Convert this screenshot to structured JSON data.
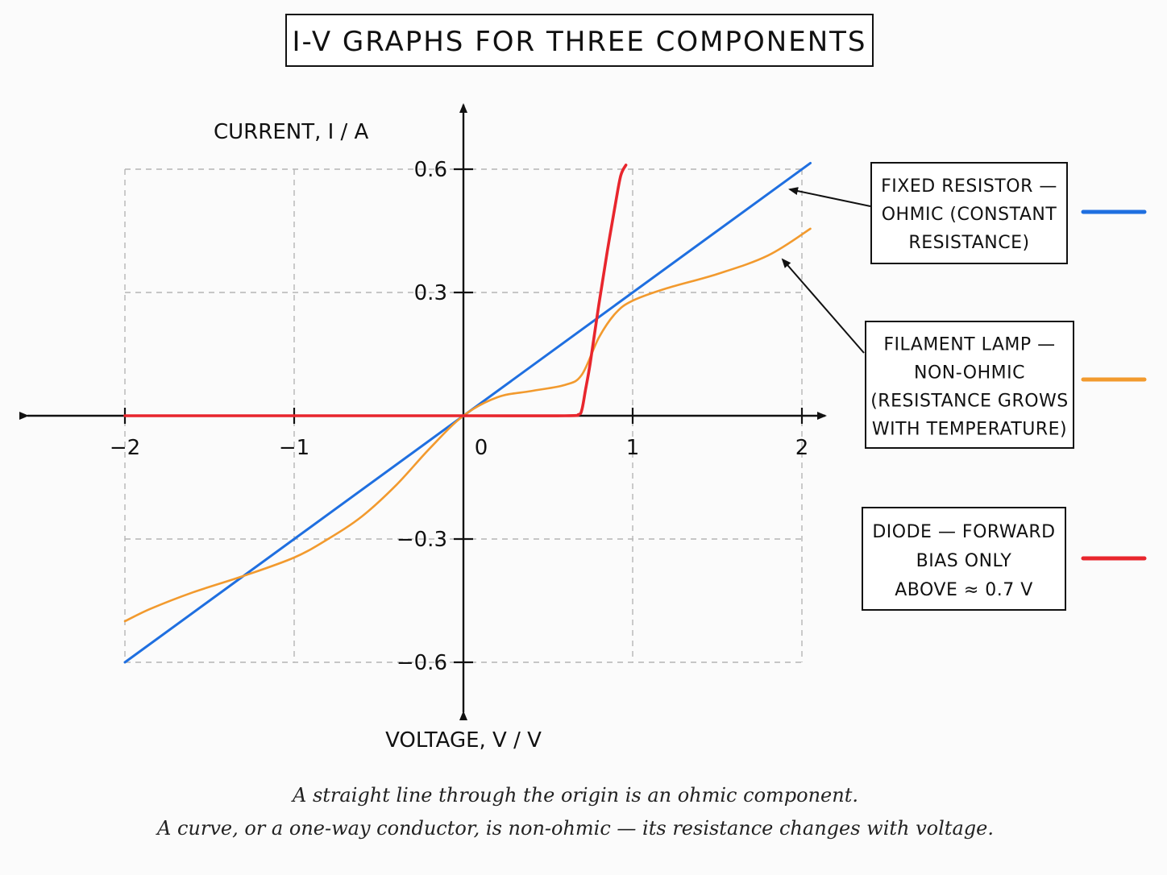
{
  "chart_data": {
    "type": "line",
    "title": "I-V GRAPHS FOR THREE COMPONENTS",
    "ylabel": "CURRENT, I / A",
    "xlabel": "VOLTAGE, V / V",
    "xlim": [
      -2,
      2
    ],
    "ylim": [
      -0.6,
      0.6
    ],
    "x_ticks": [
      -2,
      -1,
      0,
      1,
      2
    ],
    "x_tick_labels": [
      "−2",
      "−1",
      "0",
      "1",
      "2"
    ],
    "y_ticks": [
      -0.6,
      -0.3,
      0.3,
      0.6
    ],
    "y_tick_labels": [
      "−0.6",
      "−0.3",
      "0.3",
      "0.6"
    ],
    "grid": true,
    "legend_position": "right",
    "series": [
      {
        "name": "FIXED RESISTOR — OHMIC (CONSTANT RESISTANCE)",
        "legend_lines": [
          "FIXED RESISTOR —",
          "OHMIC (CONSTANT",
          "RESISTANCE)"
        ],
        "color": "#1f6fe0",
        "x": [
          -2,
          2.05
        ],
        "y": [
          -0.6,
          0.615
        ]
      },
      {
        "name": "FILAMENT LAMP — NON-OHMIC (RESISTANCE GROWS WITH TEMPERATURE)",
        "legend_lines": [
          "FILAMENT LAMP —",
          "NON-OHMIC",
          "(RESISTANCE GROWS",
          "WITH TEMPERATURE)"
        ],
        "color": "#f29a2e",
        "x": [
          -2,
          -1.85,
          -1.6,
          -1.3,
          -1.0,
          -0.8,
          -0.6,
          -0.4,
          -0.2,
          0,
          0.2,
          0.4,
          0.6,
          0.7,
          0.8,
          0.9,
          1.0,
          1.2,
          1.5,
          1.8,
          2.05
        ],
        "y": [
          -0.5,
          -0.47,
          -0.43,
          -0.39,
          -0.345,
          -0.3,
          -0.245,
          -0.17,
          -0.08,
          0,
          0.045,
          0.06,
          0.075,
          0.1,
          0.19,
          0.25,
          0.28,
          0.31,
          0.345,
          0.39,
          0.455
        ]
      },
      {
        "name": "DIODE — FORWARD BIAS ONLY ABOVE ≈ 0.7 V",
        "legend_lines": [
          "DIODE — FORWARD",
          "BIAS ONLY",
          "ABOVE ≈ 0.7 V"
        ],
        "color": "#e8262d",
        "x": [
          -2,
          0,
          0.6,
          0.68,
          0.7,
          0.72,
          0.75,
          0.8,
          0.85,
          0.9,
          0.93,
          0.96
        ],
        "y": [
          0,
          0,
          0,
          0.003,
          0.015,
          0.06,
          0.13,
          0.27,
          0.4,
          0.52,
          0.585,
          0.61
        ]
      }
    ]
  },
  "caption": {
    "line1": "A straight line through the origin is an ohmic component.",
    "line2": "A curve, or a one-way conductor, is non-ohmic — its resistance changes with voltage."
  }
}
